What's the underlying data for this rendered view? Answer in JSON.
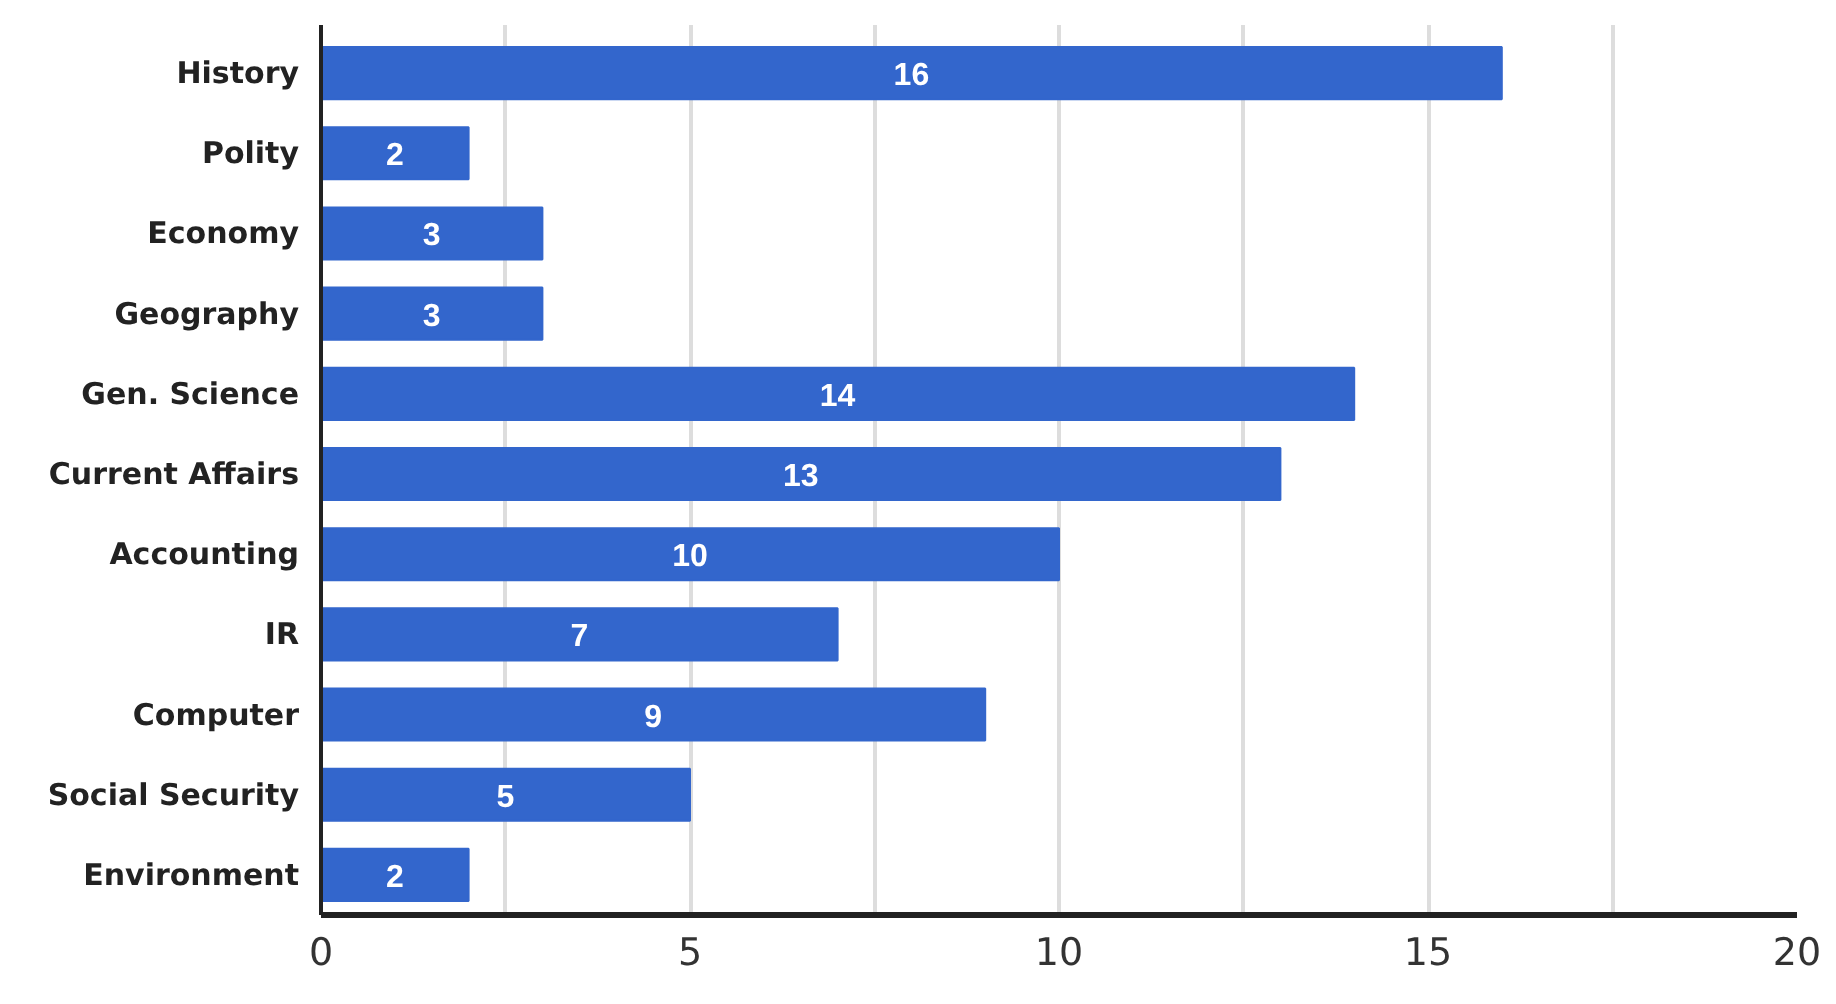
{
  "chart_data": {
    "type": "bar",
    "orientation": "horizontal",
    "categories": [
      "History",
      "Polity",
      "Economy",
      "Geography",
      "Gen. Science",
      "Current Affairs",
      "Accounting",
      "IR",
      "Computer",
      "Social Security",
      "Environment"
    ],
    "values": [
      16,
      2,
      3,
      3,
      14,
      13,
      10,
      7,
      9,
      5,
      2
    ],
    "color": "#3366cc",
    "xlim": [
      0,
      20
    ],
    "xticks": [
      0,
      {
        "value": 2.5,
        "label": null
      },
      5,
      {
        "value": 7.5,
        "label": null
      },
      10,
      {
        "value": 12.5,
        "label": null
      },
      15,
      {
        "value": 17.5,
        "label": null
      },
      20
    ],
    "grid": "x",
    "data_labels": true
  }
}
